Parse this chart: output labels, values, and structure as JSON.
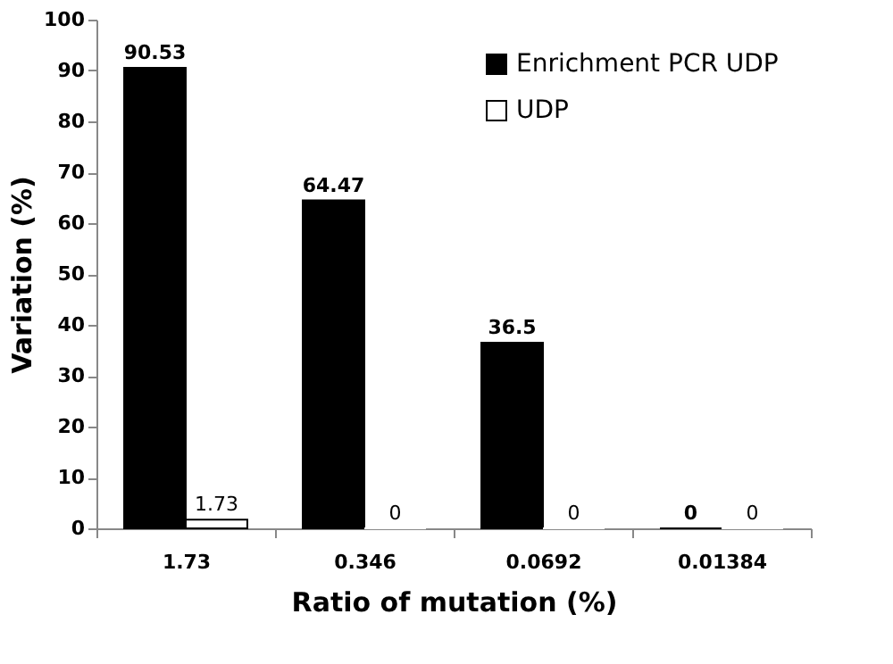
{
  "chart_data": {
    "type": "bar",
    "xlabel": "Ratio of mutation (%)",
    "ylabel": "Variation (%)",
    "categories": [
      "1.73",
      "0.346",
      "0.0692",
      "0.01384"
    ],
    "series": [
      {
        "name": "Enrichment PCR UDP",
        "color": "#000000",
        "values": [
          90.53,
          64.47,
          36.5,
          0
        ]
      },
      {
        "name": "UDP",
        "color": "#ffffff",
        "values": [
          1.73,
          0,
          0,
          0
        ]
      }
    ],
    "ylim": [
      0,
      100
    ],
    "yticks": [
      0,
      10,
      20,
      30,
      40,
      50,
      60,
      70,
      80,
      90,
      100
    ],
    "data_labels": true,
    "grid": false,
    "legend": "top right"
  }
}
